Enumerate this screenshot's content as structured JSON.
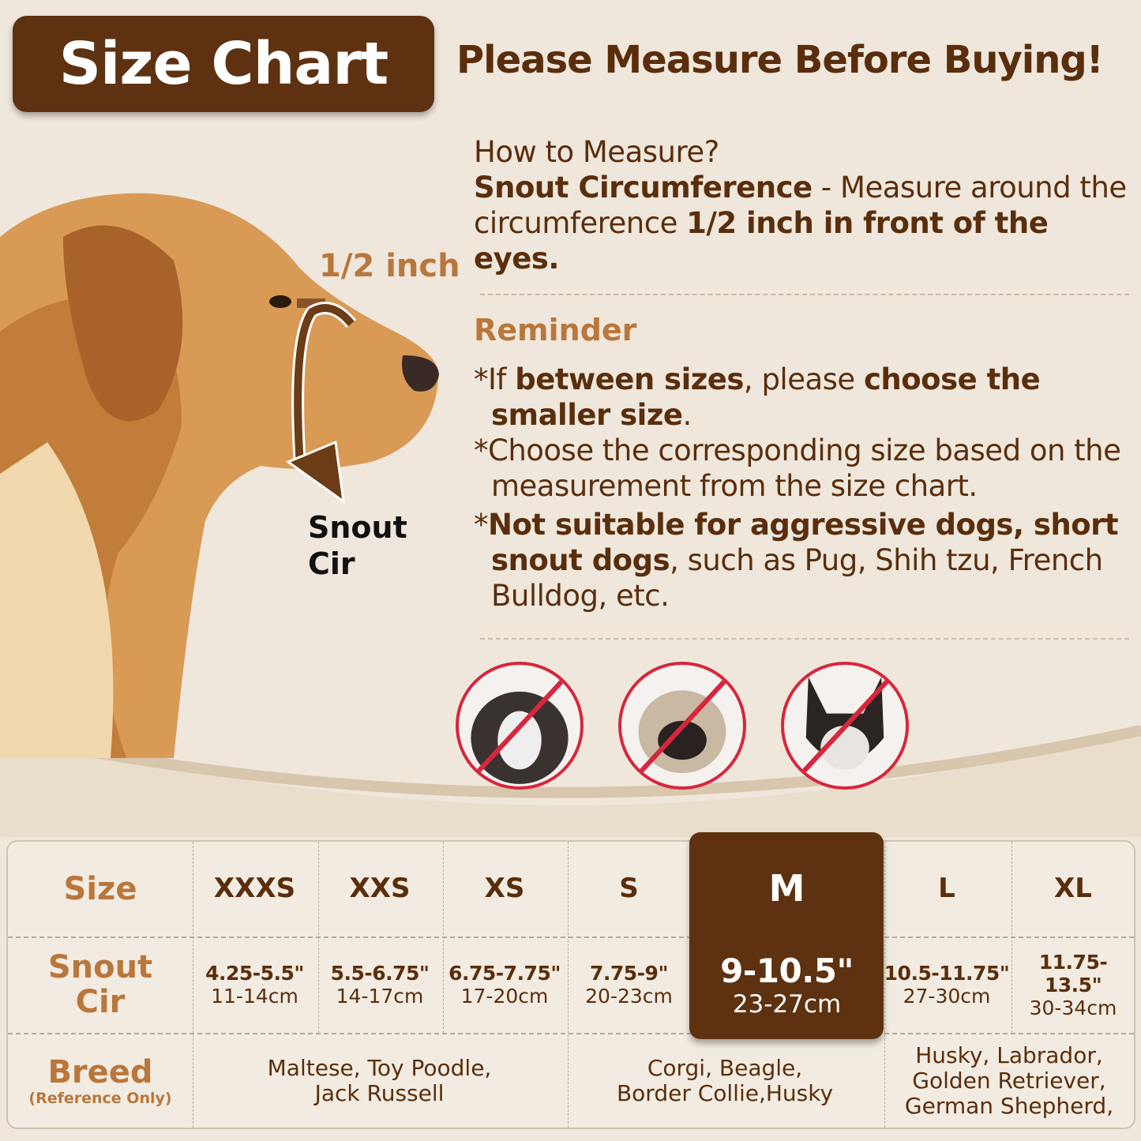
{
  "header": {
    "title": "Size Chart",
    "headline": "Please Measure Before Buying!"
  },
  "diagram": {
    "half_inch_label": "1/2 inch",
    "snout_label_line1": "Snout",
    "snout_label_line2": "Cir"
  },
  "how_to": {
    "question": "How to Measure?",
    "term": "Snout Circumference",
    "text1": " - Measure around the circumference ",
    "emphasis": "1/2 inch in front of the eyes."
  },
  "reminder": {
    "title": "Reminder",
    "items": [
      {
        "a": "*If ",
        "b": "between sizes",
        "c": ", please ",
        "d": "choose the smaller size",
        "e": "."
      },
      {
        "a": "*Choose the corresponding size based on the measurement from the size chart.",
        "b": "",
        "c": "",
        "d": "",
        "e": ""
      },
      {
        "a": "*",
        "b": "Not suitable for aggressive dogs, short snout dogs",
        "c": ", such as Pug, Shih tzu, French Bulldog, etc.",
        "d": "",
        "e": ""
      }
    ]
  },
  "unsuitable_breeds": [
    {
      "icon": "shih-tzu-prohibited-icon"
    },
    {
      "icon": "pug-prohibited-icon"
    },
    {
      "icon": "french-bulldog-prohibited-icon"
    }
  ],
  "colors": {
    "brand_brown": "#5e3210",
    "accent_tan": "#b9773c",
    "background": "#efe7dc",
    "prohibit_red": "#d7263d"
  },
  "table": {
    "row_headers": {
      "size": "Size",
      "snout_line1": "Snout",
      "snout_line2": "Cir",
      "breed": "Breed",
      "breed_note": "(Reference Only)"
    },
    "highlighted": "M",
    "sizes": [
      {
        "size": "XXXS",
        "inch": "4.25-5.5\"",
        "cm": "11-14cm"
      },
      {
        "size": "XXS",
        "inch": "5.5-6.75\"",
        "cm": "14-17cm"
      },
      {
        "size": "XS",
        "inch": "6.75-7.75\"",
        "cm": "17-20cm"
      },
      {
        "size": "S",
        "inch": "7.75-9\"",
        "cm": "20-23cm"
      },
      {
        "size": "M",
        "inch": "9-10.5\"",
        "cm": "23-27cm"
      },
      {
        "size": "L",
        "inch": "10.5-11.75\"",
        "cm": "27-30cm"
      },
      {
        "size": "XL",
        "inch": "11.75-13.5\"",
        "cm": "30-34cm"
      }
    ],
    "breeds": [
      {
        "line1": "Maltese, Toy Poodle,",
        "line2": "Jack Russell",
        "line3": ""
      },
      {
        "line1": "Corgi, Beagle,",
        "line2": "Border Collie,Husky",
        "line3": ""
      },
      {
        "line1": "Husky, Labrador,",
        "line2": "Golden Retriever,",
        "line3": "German Shepherd,"
      }
    ]
  }
}
